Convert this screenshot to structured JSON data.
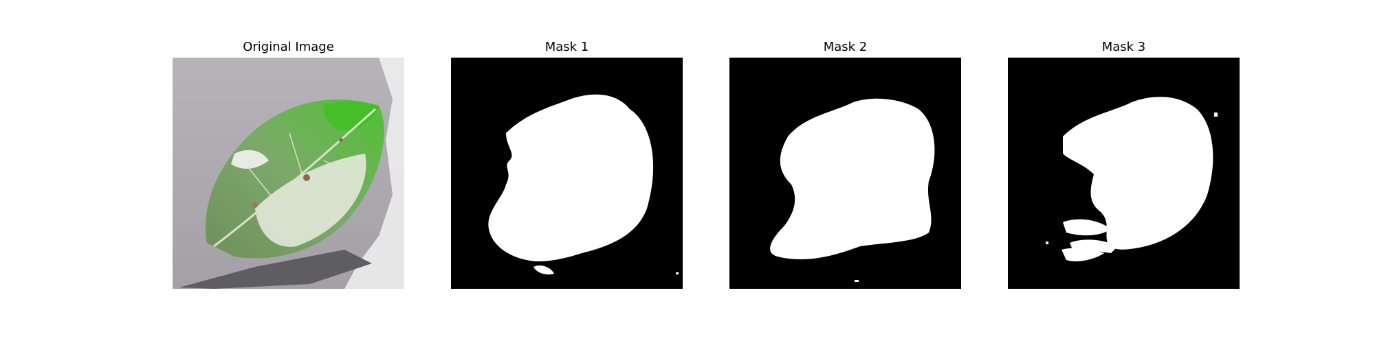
{
  "figure": {
    "panels": [
      {
        "title": "Original Image",
        "kind": "photo"
      },
      {
        "title": "Mask 1",
        "kind": "binary-mask"
      },
      {
        "title": "Mask 2",
        "kind": "binary-mask"
      },
      {
        "title": "Mask 3",
        "kind": "binary-mask"
      }
    ],
    "colors": {
      "mask_background": "#000000",
      "mask_foreground": "#ffffff",
      "leaf_green": "#5f9a52",
      "leaf_highlight": "#5ac43a",
      "surface_gray": "#a9a6ab",
      "shadow": "#5e5d61"
    }
  }
}
